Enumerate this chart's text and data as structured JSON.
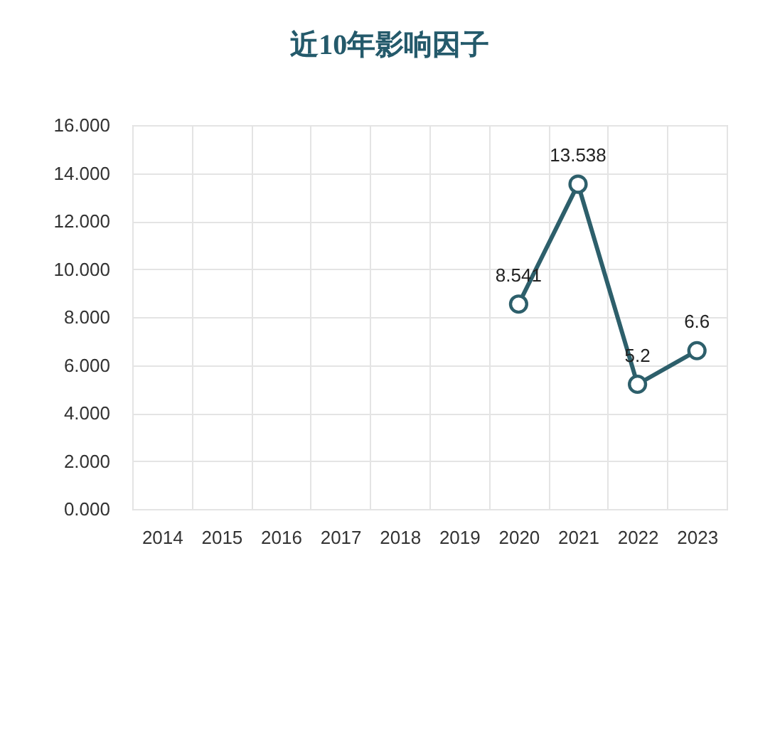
{
  "chart_data": {
    "type": "line",
    "title": "近10年影响因子",
    "categories": [
      "2014",
      "2015",
      "2016",
      "2017",
      "2018",
      "2019",
      "2020",
      "2021",
      "2022",
      "2023"
    ],
    "series": [
      {
        "color": "#2d5f6b",
        "values": [
          null,
          null,
          null,
          null,
          null,
          null,
          8.541,
          13.538,
          5.2,
          6.6
        ]
      }
    ],
    "ylim": [
      0,
      16
    ],
    "yticks": [
      {
        "value": 0,
        "label": "0.000"
      },
      {
        "value": 2,
        "label": "2.000"
      },
      {
        "value": 4,
        "label": "4.000"
      },
      {
        "value": 6,
        "label": "6.000"
      },
      {
        "value": 8,
        "label": "8.000"
      },
      {
        "value": 10,
        "label": "10.000"
      },
      {
        "value": 12,
        "label": "12.000"
      },
      {
        "value": 14,
        "label": "14.000"
      },
      {
        "value": 16,
        "label": "16.000"
      }
    ],
    "grid": true,
    "marker": "circle",
    "line_style": "solid",
    "data_labels": true
  }
}
